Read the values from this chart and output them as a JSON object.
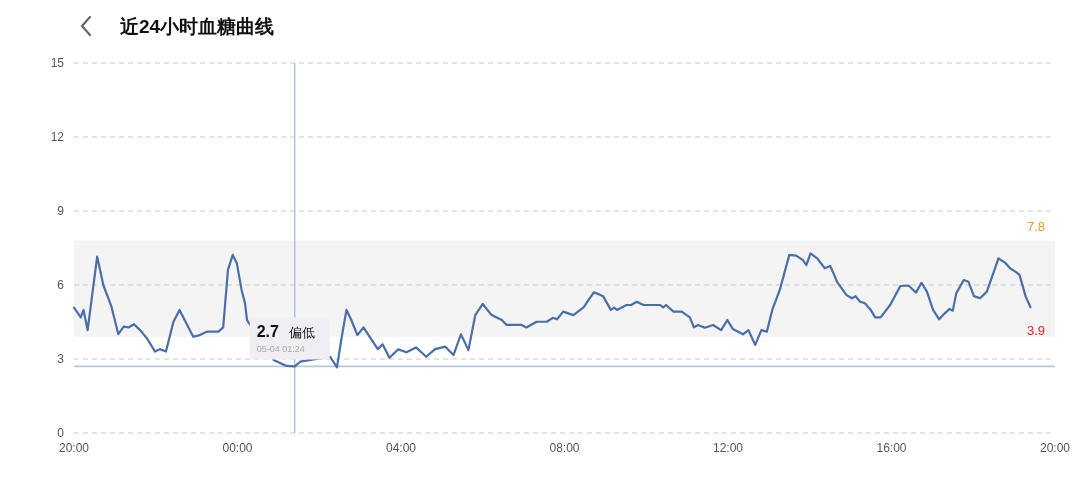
{
  "chart_data": {
    "type": "line",
    "title": "近24小时血糖曲线",
    "x": [
      "--05-03T20:00",
      "--05-03T20:10",
      "--05-03T20:14",
      "--05-03T20:20",
      "--05-03T20:34",
      "--05-03T20:43",
      "--05-03T20:55",
      "--05-03T21:05",
      "--05-03T21:13",
      "--05-03T21:20",
      "--05-03T21:28",
      "--05-03T21:37",
      "--05-03T21:47",
      "--05-03T21:59",
      "--05-03T22:06",
      "--05-03T22:15",
      "--05-03T22:26",
      "--05-03T22:35",
      "--05-03T22:43",
      "--05-03T22:55",
      "--05-03T23:05",
      "--05-03T23:15",
      "--05-03T23:32",
      "--05-03T23:39",
      "--05-03T23:46",
      "--05-03T23:53",
      "--05-03T23:59",
      "--05-04T00:06",
      "--05-04T00:11",
      "--05-04T00:14",
      "--05-04T00:53",
      "--05-04T01:12",
      "--05-04T01:24",
      "--05-04T01:32",
      "--05-04T02:16",
      "--05-04T02:26",
      "--05-04T02:33",
      "--05-04T02:40",
      "--05-04T02:47",
      "--05-04T02:56",
      "--05-04T03:05",
      "--05-04T03:14",
      "--05-04T03:26",
      "--05-04T03:33",
      "--05-04T03:43",
      "--05-04T03:56",
      "--05-04T04:08",
      "--05-04T04:22",
      "--05-04T04:37",
      "--05-04T04:50",
      "--05-04T05:05",
      "--05-04T05:17",
      "--05-04T05:28",
      "--05-04T05:39",
      "--05-04T05:49",
      "--05-04T06:00",
      "--05-04T06:13",
      "--05-04T06:28",
      "--05-04T06:35",
      "--05-04T06:57",
      "--05-04T07:04",
      "--05-04T07:19",
      "--05-04T07:34",
      "--05-04T07:43",
      "--05-04T07:49",
      "--05-04T07:58",
      "--05-04T08:13",
      "--05-04T08:28",
      "--05-04T08:43",
      "--05-04T08:51",
      "--05-04T08:57",
      "--05-04T09:08",
      "--05-04T09:13",
      "--05-04T09:17",
      "--05-04T09:31",
      "--05-04T09:38",
      "--05-04T09:46",
      "--05-04T09:56",
      "--05-04T10:20",
      "--05-04T10:25",
      "--05-04T10:29",
      "--05-04T10:40",
      "--05-04T10:52",
      "--05-04T11:04",
      "--05-04T11:10",
      "--05-04T11:16",
      "--05-04T11:26",
      "--05-04T11:38",
      "--05-04T11:50",
      "--05-04T11:59",
      "--05-04T12:07",
      "--05-04T12:22",
      "--05-04T12:30",
      "--05-04T12:40",
      "--05-04T12:49",
      "--05-04T12:57",
      "--05-04T13:05",
      "--05-04T13:16",
      "--05-04T13:30",
      "--05-04T13:40",
      "--05-04T13:50",
      "--05-04T13:55",
      "--05-04T14:01",
      "--05-04T14:11",
      "--05-04T14:22",
      "--05-04T14:30",
      "--05-04T14:37",
      "--05-04T14:40",
      "--05-04T14:54",
      "--05-04T15:02",
      "--05-04T15:07",
      "--05-04T15:14",
      "--05-04T15:21",
      "--05-04T15:29",
      "--05-04T15:36",
      "--05-04T15:44",
      "--05-04T15:58",
      "--05-04T16:13",
      "--05-04T16:25",
      "--05-04T16:36",
      "--05-04T16:44",
      "--05-04T16:52",
      "--05-04T17:01",
      "--05-04T17:10",
      "--05-04T17:17",
      "--05-04T17:25",
      "--05-04T17:30",
      "--05-04T17:35",
      "--05-04T17:46",
      "--05-04T17:53",
      "--05-04T18:01",
      "--05-04T18:10",
      "--05-04T18:20",
      "--05-04T18:37",
      "--05-04T18:47",
      "--05-04T18:54",
      "--05-04T19:04",
      "--05-04T19:08",
      "--05-04T19:17",
      "--05-04T19:24"
    ],
    "series": [
      {
        "color": "#4a6ea8",
        "values": [
          5.08,
          4.69,
          4.99,
          4.17,
          7.15,
          6.0,
          5.12,
          4.01,
          4.31,
          4.28,
          4.41,
          4.17,
          3.84,
          3.3,
          3.4,
          3.3,
          4.51,
          4.99,
          4.55,
          3.9,
          3.97,
          4.11,
          4.11,
          4.28,
          6.61,
          7.22,
          6.88,
          5.8,
          5.26,
          4.58,
          2.96,
          2.72,
          2.7,
          2.89,
          3.09,
          2.66,
          3.9,
          4.99,
          4.58,
          3.97,
          4.28,
          3.9,
          3.4,
          3.6,
          3.05,
          3.39,
          3.27,
          3.47,
          3.09,
          3.4,
          3.5,
          3.16,
          4.0,
          3.36,
          4.78,
          5.23,
          4.78,
          4.58,
          4.38,
          4.38,
          4.28,
          4.51,
          4.51,
          4.67,
          4.61,
          4.92,
          4.78,
          5.09,
          5.7,
          5.62,
          5.53,
          4.99,
          5.08,
          4.99,
          5.19,
          5.19,
          5.32,
          5.19,
          5.19,
          5.09,
          5.19,
          4.92,
          4.92,
          4.69,
          4.28,
          4.38,
          4.27,
          4.38,
          4.17,
          4.58,
          4.22,
          4.0,
          4.17,
          3.57,
          4.17,
          4.11,
          4.99,
          5.8,
          7.22,
          7.19,
          7.01,
          6.81,
          7.28,
          7.08,
          6.68,
          6.77,
          6.34,
          6.13,
          5.59,
          5.46,
          5.55,
          5.32,
          5.26,
          5.01,
          4.69,
          4.69,
          5.19,
          5.96,
          5.98,
          5.69,
          6.09,
          5.73,
          4.99,
          4.61,
          4.82,
          5.03,
          4.96,
          5.66,
          6.2,
          6.13,
          5.55,
          5.46,
          5.73,
          7.08,
          6.9,
          6.68,
          6.5,
          6.4,
          5.53,
          5.1
        ]
      }
    ],
    "xlim": [
      "--05-03T20:00",
      "--05-04T20:00"
    ],
    "ylim": [
      0,
      15
    ],
    "xticks": [
      {
        "value": "--05-03T20:00",
        "label": "20:00"
      },
      {
        "value": "--05-04T00:00",
        "label": "00:00"
      },
      {
        "value": "--05-04T04:00",
        "label": "04:00"
      },
      {
        "value": "--05-04T08:00",
        "label": "08:00"
      },
      {
        "value": "--05-04T12:00",
        "label": "12:00"
      },
      {
        "value": "--05-04T16:00",
        "label": "16:00"
      },
      {
        "value": "--05-04T20:00",
        "label": "20:00"
      }
    ],
    "yticks": [
      0,
      3,
      6,
      9,
      12,
      15
    ],
    "grid": "y",
    "line_style": "solid",
    "marker": "none",
    "bands": [
      {
        "axis": "y",
        "from": 3.9,
        "to": 7.8,
        "color": "#f4f4f4"
      }
    ],
    "ref_lines": [
      {
        "axis": "y",
        "value": 2.7,
        "color": "#b8c7e0"
      },
      {
        "axis": "x",
        "value": "--05-04T01:24",
        "color": "#a7bbdb"
      }
    ],
    "annotations": [
      {
        "text": "7.8",
        "x": "--05-04T20:00",
        "y": 7.8
      },
      {
        "text": "3.9",
        "x": "--05-04T20:00",
        "y": 3.9
      },
      {
        "text": "2.7 偏低",
        "x": "--05-04T01:24",
        "y": 2.7
      },
      {
        "text": "05-04 01:24",
        "x": "--05-04T01:24",
        "y": 2.7
      }
    ]
  }
}
